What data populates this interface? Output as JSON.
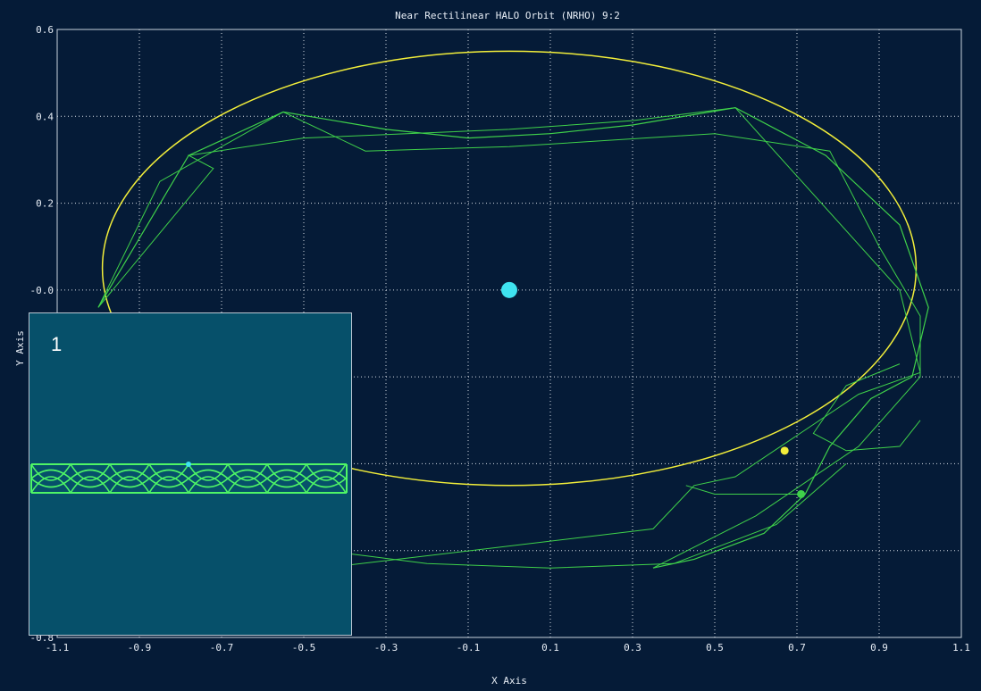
{
  "chart_data": {
    "type": "line",
    "title": "Near Rectilinear HALO Orbit (NRHO) 9:2",
    "xlabel": "X Axis",
    "ylabel": "Y Axis",
    "xlim": [
      -1.1,
      1.1
    ],
    "ylim": [
      -0.8,
      0.6
    ],
    "grid": true,
    "x_ticks": [
      "-1.1",
      "-0.9",
      "-0.7",
      "-0.5",
      "-0.3",
      "-0.1",
      "0.1",
      "0.3",
      "0.5",
      "0.7",
      "0.9",
      "1.1"
    ],
    "y_ticks": [
      "-0.8",
      "-0.0",
      "0.2",
      "0.4",
      "0.6"
    ],
    "series": [
      {
        "color": "#f2ee3a",
        "shape": "ellipse",
        "center": [
          0.0,
          0.05
        ],
        "semi_axes": [
          0.99,
          0.5
        ]
      },
      {
        "color": "#3fd14a",
        "shape": "trajectory",
        "x": [
          -1.0,
          -0.78,
          -0.55,
          -0.3,
          -0.1,
          0.1,
          0.3,
          0.55,
          0.77,
          0.95,
          1.02,
          0.98,
          0.88,
          0.78,
          0.72,
          0.62,
          0.45,
          0.35
        ],
        "y": [
          -0.04,
          0.31,
          0.41,
          0.37,
          0.35,
          0.36,
          0.38,
          0.42,
          0.31,
          0.15,
          -0.04,
          -0.2,
          -0.25,
          -0.36,
          -0.47,
          -0.56,
          -0.62,
          -0.64
        ]
      }
    ],
    "markers": [
      {
        "name": "moon",
        "x": 0.0,
        "y": 0.0,
        "color": "#3fe3f0"
      },
      {
        "name": "yellow-craft",
        "x": 0.67,
        "y": -0.37,
        "color": "#f2ee3a"
      },
      {
        "name": "green-craft",
        "x": 0.71,
        "y": -0.47,
        "color": "#3fd14a"
      }
    ]
  },
  "inset": {
    "label": "1",
    "background": "#06506a",
    "trace_color": "#4ef566",
    "dot_color": "#3fe3f0"
  }
}
